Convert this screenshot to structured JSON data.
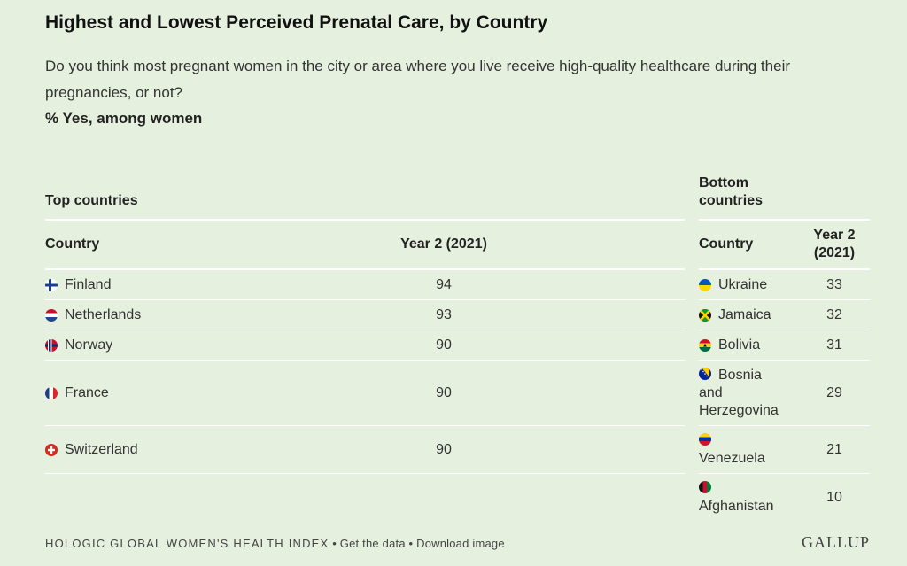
{
  "title": "Highest and Lowest Perceived Prenatal Care, by Country",
  "question": "Do you think most pregnant women in the city or area where you live receive high-quality healthcare during their pregnancies, or not?",
  "measure": "% Yes, among women",
  "chart_data": {
    "type": "table",
    "top": {
      "group_label": "Top countries",
      "columns": [
        "Country",
        "Year 2 (2021)"
      ],
      "rows": [
        {
          "country": "Finland",
          "value": "94",
          "flag": "finland-flag"
        },
        {
          "country": "Netherlands",
          "value": "93",
          "flag": "netherlands-flag"
        },
        {
          "country": "Norway",
          "value": "90",
          "flag": "norway-flag"
        },
        {
          "country": "France",
          "value": "90",
          "flag": "france-flag"
        },
        {
          "country": "Switzerland",
          "value": "90",
          "flag": "switzerland-flag"
        }
      ]
    },
    "bottom": {
      "group_label_1": "Bottom",
      "group_label_2": "countries",
      "columns": [
        "Country",
        "Year 2",
        "(2021)"
      ],
      "rows": [
        {
          "country": "Ukraine",
          "value": "33",
          "flag": "ukraine-flag"
        },
        {
          "country": "Jamaica",
          "value": "32",
          "flag": "jamaica-flag"
        },
        {
          "country": "Bolivia",
          "value": "31",
          "flag": "ghana-style-flag"
        },
        {
          "country_1": "Bosnia",
          "country_2": "and",
          "country_3": "Herzegovina",
          "value": "29",
          "flag": "bosnia-flag"
        },
        {
          "country": "Venezuela",
          "value": "21",
          "flag": "venezuela-flag"
        },
        {
          "country": "Afghanistan",
          "value": "10",
          "flag": "afghanistan-flag"
        }
      ]
    }
  },
  "footer": {
    "source": "HOLOGIC GLOBAL WOMEN'S HEALTH INDEX",
    "sep": " • ",
    "get_data": "Get the data",
    "download": "Download image",
    "logo": "GALLUP"
  }
}
